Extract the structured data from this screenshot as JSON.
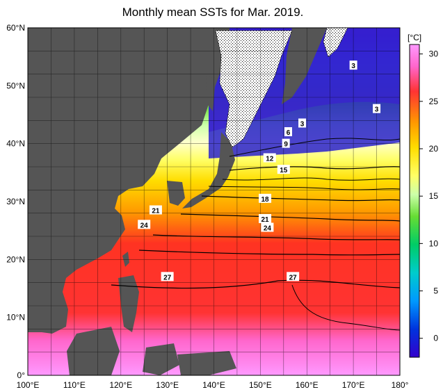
{
  "title": "Monthly mean SSTs for Mar. 2019.",
  "colorbar": {
    "unit": "[°C]",
    "ticks": [
      "30",
      "25",
      "20",
      "15",
      "10",
      "5",
      "0"
    ],
    "tick_values": [
      30,
      25,
      20,
      15,
      10,
      5,
      0
    ],
    "range": [
      -2,
      31
    ],
    "stops": [
      "#ff99ff",
      "#ff66cc",
      "#ff3333",
      "#ff5500",
      "#ff9900",
      "#ffdd00",
      "#ffff66",
      "#ffffcc",
      "#ccffaa",
      "#66dd33",
      "#00cc66",
      "#00cccc",
      "#0099ff",
      "#0033dd",
      "#3300cc"
    ]
  },
  "axes": {
    "lon_labels": [
      "100°E",
      "110°E",
      "120°E",
      "130°E",
      "140°E",
      "150°E",
      "160°E",
      "170°E",
      "180°"
    ],
    "lat_labels": [
      "60°N",
      "50°N",
      "40°N",
      "30°N",
      "20°N",
      "10°N",
      "0°"
    ],
    "lon_range": [
      100,
      180
    ],
    "lat_range": [
      0,
      60
    ]
  },
  "contour_labels": [
    {
      "text": "3",
      "lon": 170,
      "lat": 53.5
    },
    {
      "text": "3",
      "lon": 175,
      "lat": 46
    },
    {
      "text": "3",
      "lon": 159,
      "lat": 43.5
    },
    {
      "text": "6",
      "lon": 156,
      "lat": 42
    },
    {
      "text": "9",
      "lon": 155.5,
      "lat": 40
    },
    {
      "text": "12",
      "lon": 152,
      "lat": 37.5
    },
    {
      "text": "15",
      "lon": 155,
      "lat": 35.5
    },
    {
      "text": "18",
      "lon": 151,
      "lat": 30.5
    },
    {
      "text": "21",
      "lon": 127.5,
      "lat": 28.5
    },
    {
      "text": "21",
      "lon": 151,
      "lat": 27
    },
    {
      "text": "24",
      "lon": 125,
      "lat": 26
    },
    {
      "text": "24",
      "lon": 151.5,
      "lat": 25.5
    },
    {
      "text": "27",
      "lon": 130,
      "lat": 17
    },
    {
      "text": "27",
      "lon": 157,
      "lat": 17
    }
  ]
}
